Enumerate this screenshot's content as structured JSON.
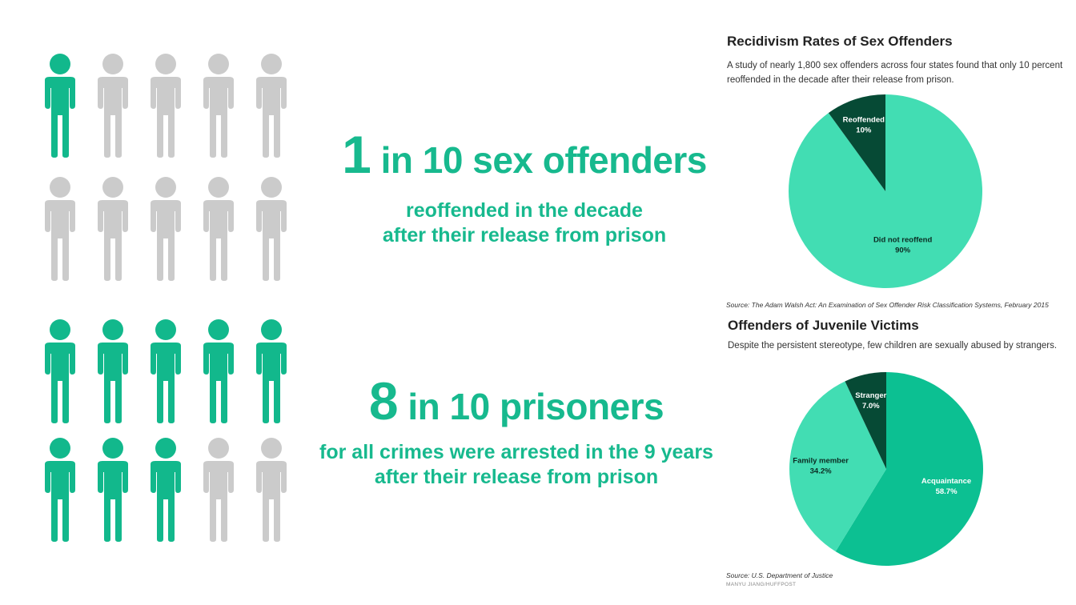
{
  "stats": {
    "one": {
      "number": "1",
      "rest": "in 10 sex offenders",
      "line1": "reoffended in the decade",
      "line2": "after their release from prison",
      "highlighted": 1,
      "total": 10
    },
    "two": {
      "number": "8",
      "rest": "in 10 prisoners",
      "line1": "for all crimes were arrested in the 9 years",
      "line2": "after their release from prison",
      "highlighted": 8,
      "total": 10
    }
  },
  "colors": {
    "accent": "#17b98e",
    "figure_on": "#12b88c",
    "figure_off": "#cbcbcb",
    "pie_light": "#42ddb3",
    "pie_mid": "#0cc092",
    "pie_dark": "#064a35"
  },
  "panels": {
    "recidivism": {
      "title": "Recidivism Rates of Sex Offenders",
      "subtitle_line1": "A study of nearly 1,800 sex offenders across four states found that only 10 percent",
      "subtitle_line2": "reoffended in the decade after their release from prison.",
      "source": "Source: The Adam Walsh Act: An Examination of Sex Offender Risk Classification Systems, February 2015"
    },
    "juvenile": {
      "title": "Offenders of Juvenile Victims",
      "subtitle": "Despite the persistent stereotype, few children are sexually abused by strangers.",
      "source": "Source: U.S. Department of Justice",
      "credit": "MANYU JIANG/HUFFPOST"
    }
  },
  "chart_data": [
    {
      "type": "pie",
      "title": "Recidivism Rates of Sex Offenders",
      "slices": [
        {
          "label": "Reoffended",
          "value_label": "10%",
          "value": 10
        },
        {
          "label": "Did not reoffend",
          "value_label": "90%",
          "value": 90
        }
      ]
    },
    {
      "type": "pie",
      "title": "Offenders of Juvenile Victims",
      "slices": [
        {
          "label": "Acquaintance",
          "value_label": "58.7%",
          "value": 58.7
        },
        {
          "label": "Family member",
          "value_label": "34.2%",
          "value": 34.2
        },
        {
          "label": "Stranger",
          "value_label": "7.0%",
          "value": 7.0
        }
      ]
    }
  ]
}
